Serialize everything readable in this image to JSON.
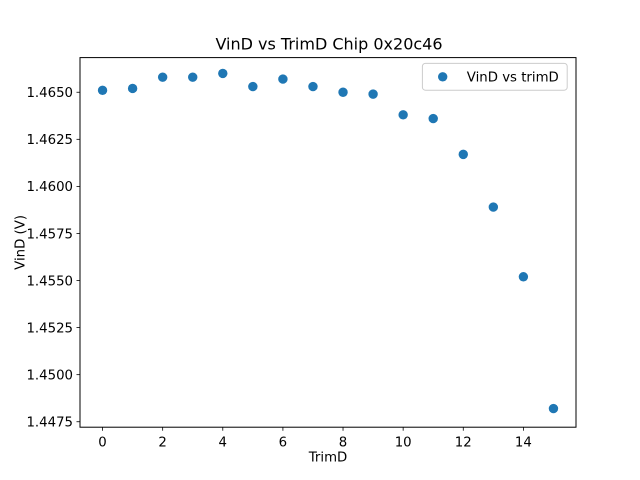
{
  "chart_data": {
    "type": "scatter",
    "title": "VinD vs TrimD Chip 0x20c46",
    "xlabel": "TrimD",
    "ylabel": "VinD (V)",
    "legend": [
      "VinD vs trimD"
    ],
    "legend_position": "upper right",
    "marker_color": "#1f77b4",
    "background_color": "#ffffff",
    "spine_color": "#000000",
    "legend_border_color": "#cccccc",
    "grid": false,
    "x": [
      0,
      1,
      2,
      3,
      4,
      5,
      6,
      7,
      8,
      9,
      10,
      11,
      12,
      13,
      14,
      15
    ],
    "y": [
      1.4651,
      1.4652,
      1.4658,
      1.4658,
      1.466,
      1.4653,
      1.4657,
      1.4653,
      1.465,
      1.4649,
      1.4638,
      1.4636,
      1.4617,
      1.4589,
      1.4552,
      1.4482
    ],
    "xlim": [
      -0.75,
      15.75
    ],
    "ylim": [
      1.44721,
      1.46684
    ],
    "xticks": [
      0,
      2,
      4,
      6,
      8,
      10,
      12,
      14
    ],
    "xtick_labels": [
      "0",
      "2",
      "4",
      "6",
      "8",
      "10",
      "12",
      "14"
    ],
    "yticks": [
      1.4475,
      1.45,
      1.4525,
      1.455,
      1.4575,
      1.46,
      1.4625,
      1.465
    ],
    "ytick_labels": [
      "1.4475",
      "1.4500",
      "1.4525",
      "1.4550",
      "1.4575",
      "1.4600",
      "1.4625",
      "1.4650"
    ]
  }
}
